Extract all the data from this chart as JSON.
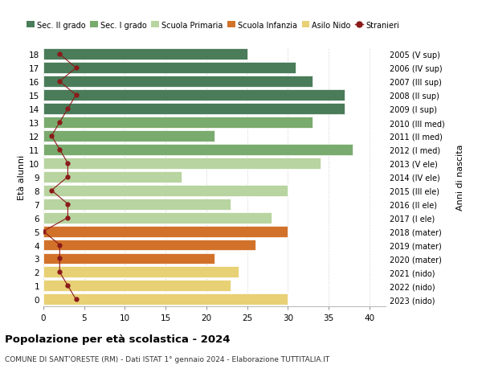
{
  "ages": [
    18,
    17,
    16,
    15,
    14,
    13,
    12,
    11,
    10,
    9,
    8,
    7,
    6,
    5,
    4,
    3,
    2,
    1,
    0
  ],
  "right_labels": [
    "2005 (V sup)",
    "2006 (IV sup)",
    "2007 (III sup)",
    "2008 (II sup)",
    "2009 (I sup)",
    "2010 (III med)",
    "2011 (II med)",
    "2012 (I med)",
    "2013 (V ele)",
    "2014 (IV ele)",
    "2015 (III ele)",
    "2016 (II ele)",
    "2017 (I ele)",
    "2018 (mater)",
    "2019 (mater)",
    "2020 (mater)",
    "2021 (nido)",
    "2022 (nido)",
    "2023 (nido)"
  ],
  "bar_values": [
    25,
    31,
    33,
    37,
    37,
    33,
    21,
    38,
    34,
    17,
    30,
    23,
    28,
    30,
    26,
    21,
    24,
    23,
    30
  ],
  "bar_colors": [
    "#4a7c59",
    "#4a7c59",
    "#4a7c59",
    "#4a7c59",
    "#4a7c59",
    "#7aab6e",
    "#7aab6e",
    "#7aab6e",
    "#b8d4a0",
    "#b8d4a0",
    "#b8d4a0",
    "#b8d4a0",
    "#b8d4a0",
    "#d2722a",
    "#d2722a",
    "#d2722a",
    "#e8d075",
    "#e8d075",
    "#e8d075"
  ],
  "stranieri_values": [
    2,
    4,
    2,
    4,
    3,
    2,
    1,
    2,
    3,
    3,
    1,
    3,
    3,
    0,
    2,
    2,
    2,
    3,
    4
  ],
  "stranieri_color": "#8b1a1a",
  "legend_labels": [
    "Sec. II grado",
    "Sec. I grado",
    "Scuola Primaria",
    "Scuola Infanzia",
    "Asilo Nido",
    "Stranieri"
  ],
  "legend_colors": [
    "#4a7c59",
    "#7aab6e",
    "#b8d4a0",
    "#d2722a",
    "#e8d075",
    "#8b1a1a"
  ],
  "title": "Popolazione per età scolastica - 2024",
  "subtitle": "COMUNE DI SANT'ORESTE (RM) - Dati ISTAT 1° gennaio 2024 - Elaborazione TUTTITALIA.IT",
  "ylabel_left": "Età alunni",
  "ylabel_right": "Anni di nascita",
  "xlim": [
    0,
    42
  ],
  "background_color": "#ffffff",
  "grid_color": "#cccccc"
}
